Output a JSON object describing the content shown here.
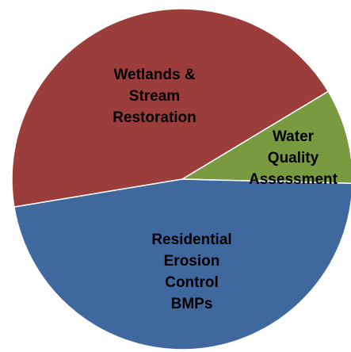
{
  "chart_data": {
    "type": "pie",
    "slices": [
      {
        "label": "Wetlands & Stream Restoration",
        "label_lines": [
          "Wetlands &",
          "Stream",
          "Restoration"
        ],
        "value": 44,
        "color": "#9B3D3A"
      },
      {
        "label": "Water Quality Assessment",
        "label_lines": [
          "Water",
          "Quality",
          "Assessment"
        ],
        "value": 9,
        "color": "#7A9A3F"
      },
      {
        "label": "Residential Erosion Control BMPs",
        "label_lines": [
          "Residential",
          "Erosion",
          "Control",
          "BMPs"
        ],
        "value": 47,
        "color": "#3F689E"
      }
    ]
  }
}
